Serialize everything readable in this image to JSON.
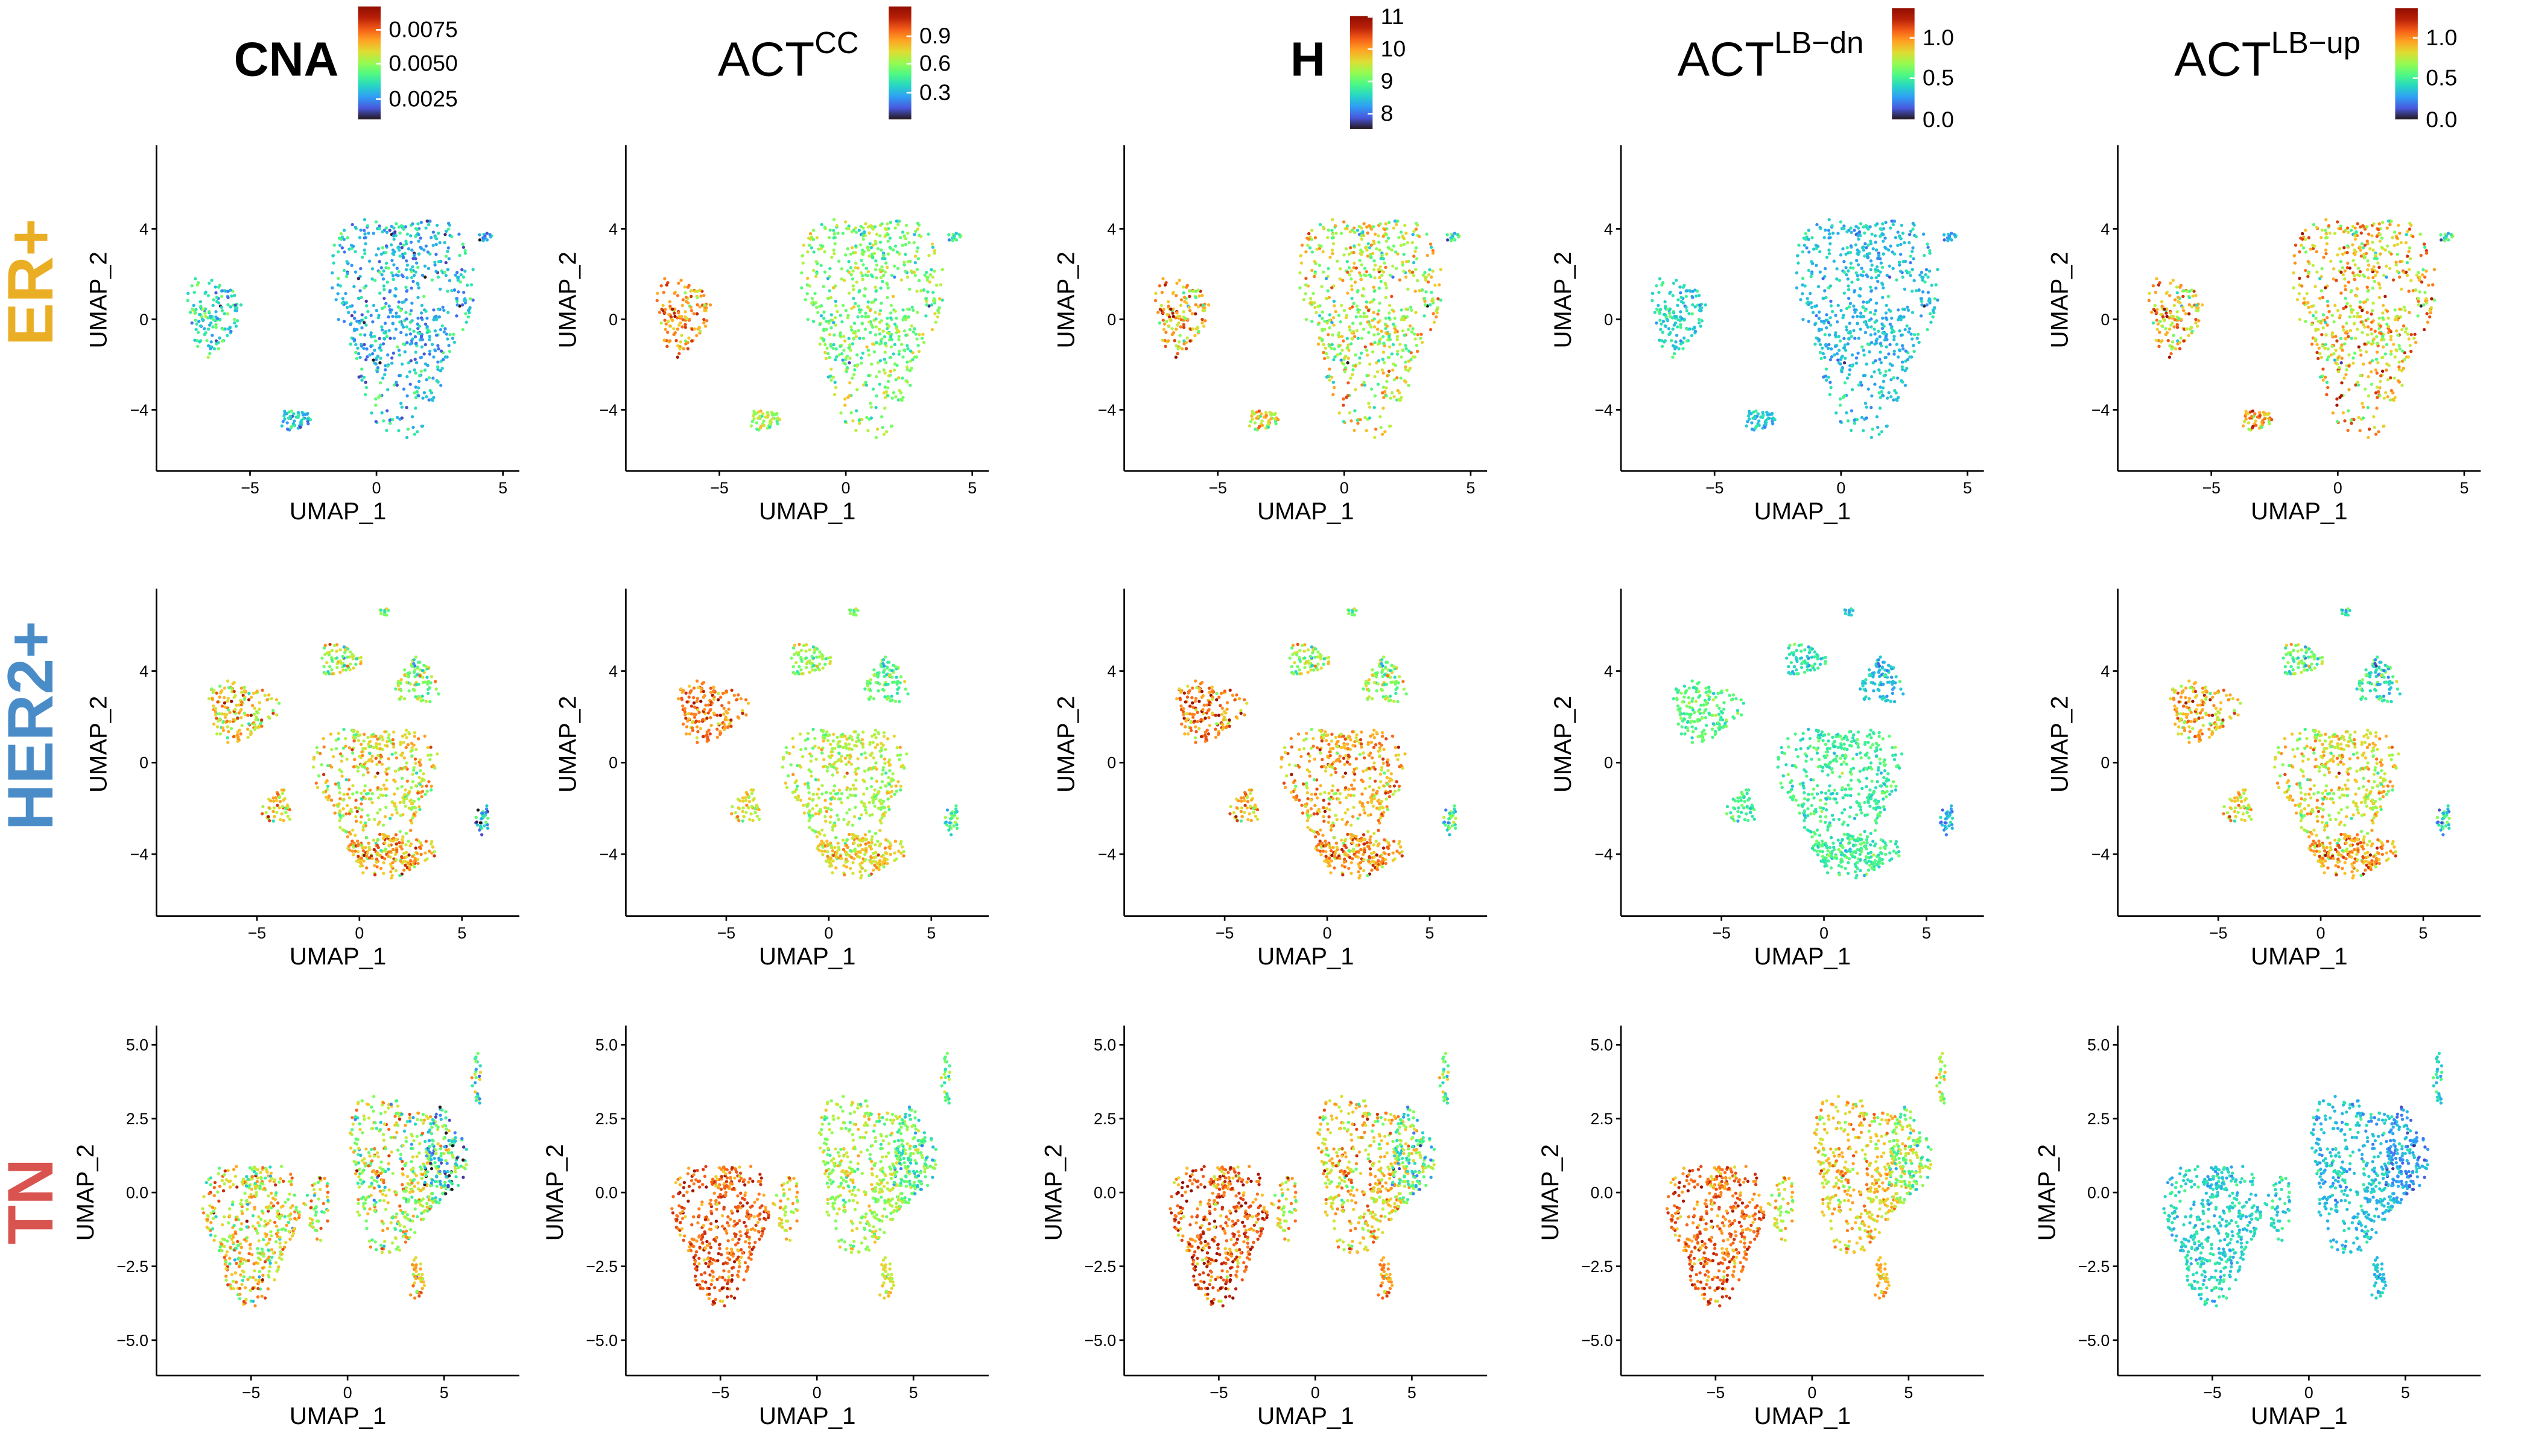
{
  "chart_data": {
    "type": "scatter",
    "colormap": "turbo",
    "x_label": "UMAP_1",
    "y_label": "UMAP_2",
    "grid": false,
    "features": [
      {
        "id": "CNA",
        "title": "CNA",
        "superscript": "",
        "bold": true,
        "range": [
          0.001,
          0.009
        ],
        "ticks": [
          "0.0025",
          "0.0050",
          "0.0075"
        ]
      },
      {
        "id": "ACT_CC",
        "title": "ACT",
        "superscript": "CC",
        "bold": false,
        "range": [
          0.0,
          1.2
        ],
        "ticks": [
          "0.3",
          "0.6",
          "0.9"
        ]
      },
      {
        "id": "H",
        "title": "H",
        "superscript": "",
        "bold": true,
        "range": [
          7.5,
          11.0
        ],
        "ticks": [
          "8",
          "9",
          "10",
          "11"
        ]
      },
      {
        "id": "ACT_LB_dn",
        "title": "ACT",
        "superscript": "LB−dn",
        "bold": false,
        "range": [
          0.0,
          1.35
        ],
        "ticks": [
          "0.0",
          "0.5",
          "1.0"
        ]
      },
      {
        "id": "ACT_LB_up",
        "title": "ACT",
        "superscript": "LB−up",
        "bold": false,
        "range": [
          0.0,
          1.35
        ],
        "ticks": [
          "0.0",
          "0.5",
          "1.0"
        ]
      }
    ],
    "rows": [
      {
        "label": "ER+",
        "color": "#EAAE24",
        "xlim": [
          -8.7,
          5.65
        ],
        "ylim": [
          -6.7,
          7.7
        ],
        "x_ticks": [
          "-5",
          "0",
          "5"
        ],
        "y_ticks": [
          "-4",
          "0",
          "4"
        ],
        "clusters": [
          {
            "cx": 1.0,
            "cy": 0.3,
            "rx": 3.2,
            "ry": 5.6,
            "n": 650,
            "values": [
              0.003,
              0.55,
              9.4,
              0.35,
              0.85
            ]
          },
          {
            "cx": -6.5,
            "cy": 0.2,
            "rx": 1.2,
            "ry": 2.0,
            "n": 140,
            "values": [
              0.0035,
              0.85,
              9.8,
              0.4,
              0.85
            ]
          },
          {
            "cx": -3.2,
            "cy": -4.4,
            "rx": 0.7,
            "ry": 0.6,
            "n": 50,
            "values": [
              0.003,
              0.6,
              9.5,
              0.35,
              0.9
            ]
          },
          {
            "cx": 4.3,
            "cy": 3.7,
            "rx": 0.3,
            "ry": 0.3,
            "n": 15,
            "values": [
              0.003,
              0.5,
              9.0,
              0.35,
              0.6
            ]
          }
        ],
        "value_sd": [
          0.0008,
          0.12,
          0.5,
          0.08,
          0.2
        ]
      },
      {
        "label": "HER2+",
        "color": "#4A8CC8",
        "xlim": [
          -9.9,
          7.8
        ],
        "ylim": [
          -6.7,
          7.6
        ],
        "x_ticks": [
          "-5",
          "0",
          "5"
        ],
        "y_ticks": [
          "-4",
          "0",
          "4"
        ],
        "clusters": [
          {
            "cx": 0.8,
            "cy": -1.0,
            "rx": 3.4,
            "ry": 3.4,
            "n": 420,
            "values": [
              0.0058,
              0.65,
              9.9,
              0.5,
              0.8
            ]
          },
          {
            "cx": -5.8,
            "cy": 2.3,
            "rx": 2.0,
            "ry": 1.5,
            "n": 170,
            "values": [
              0.006,
              0.9,
              10.1,
              0.55,
              0.9
            ]
          },
          {
            "cx": -1.0,
            "cy": 4.5,
            "rx": 1.2,
            "ry": 0.8,
            "n": 70,
            "values": [
              0.0052,
              0.6,
              9.3,
              0.45,
              0.6
            ]
          },
          {
            "cx": 2.8,
            "cy": 3.5,
            "rx": 1.2,
            "ry": 1.2,
            "n": 90,
            "values": [
              0.0048,
              0.5,
              9.2,
              0.35,
              0.45
            ]
          },
          {
            "cx": -4.0,
            "cy": -2.0,
            "rx": 0.8,
            "ry": 0.9,
            "n": 50,
            "values": [
              0.006,
              0.7,
              9.8,
              0.5,
              0.8
            ]
          },
          {
            "cx": 6.0,
            "cy": -2.5,
            "rx": 0.4,
            "ry": 0.8,
            "n": 30,
            "values": [
              0.0028,
              0.45,
              8.8,
              0.3,
              0.4
            ]
          },
          {
            "cx": 1.2,
            "cy": 6.5,
            "rx": 0.25,
            "ry": 0.3,
            "n": 10,
            "values": [
              0.005,
              0.6,
              9.2,
              0.4,
              0.5
            ]
          },
          {
            "cx": 1.5,
            "cy": -4.0,
            "rx": 2.5,
            "ry": 1.1,
            "n": 180,
            "values": [
              0.0065,
              0.75,
              10.0,
              0.5,
              0.95
            ]
          }
        ],
        "value_sd": [
          0.001,
          0.1,
          0.4,
          0.08,
          0.15
        ]
      },
      {
        "label": "TN",
        "color": "#D9534F",
        "xlim": [
          -9.9,
          8.9
        ],
        "ylim": [
          -6.2,
          5.65
        ],
        "x_ticks": [
          "-5",
          "0",
          "5"
        ],
        "y_ticks": [
          "-5.0",
          "-2.5",
          "0.0",
          "2.5",
          "5.0"
        ],
        "clusters": [
          {
            "cx": -5.0,
            "cy": -1.1,
            "rx": 2.8,
            "ry": 2.8,
            "n": 430,
            "values": [
              0.0058,
              0.95,
              10.3,
              1.05,
              0.4
            ]
          },
          {
            "cx": 2.6,
            "cy": 0.8,
            "rx": 3.2,
            "ry": 3.0,
            "n": 430,
            "values": [
              0.0052,
              0.62,
              9.7,
              0.85,
              0.35
            ]
          },
          {
            "cx": 5.0,
            "cy": 1.2,
            "rx": 1.3,
            "ry": 1.8,
            "n": 140,
            "values": [
              0.0032,
              0.45,
              8.8,
              0.6,
              0.25
            ]
          },
          {
            "cx": 3.6,
            "cy": -3.0,
            "rx": 0.5,
            "ry": 0.9,
            "n": 40,
            "values": [
              0.0062,
              0.7,
              10.0,
              0.9,
              0.35
            ]
          },
          {
            "cx": 6.7,
            "cy": 3.8,
            "rx": 0.3,
            "ry": 1.0,
            "n": 25,
            "values": [
              0.004,
              0.5,
              9.0,
              0.7,
              0.4
            ]
          },
          {
            "cx": -1.5,
            "cy": -0.5,
            "rx": 0.8,
            "ry": 1.3,
            "n": 50,
            "values": [
              0.0052,
              0.7,
              9.5,
              0.75,
              0.4
            ]
          }
        ],
        "value_sd": [
          0.0012,
          0.1,
          0.4,
          0.12,
          0.07
        ]
      }
    ]
  }
}
